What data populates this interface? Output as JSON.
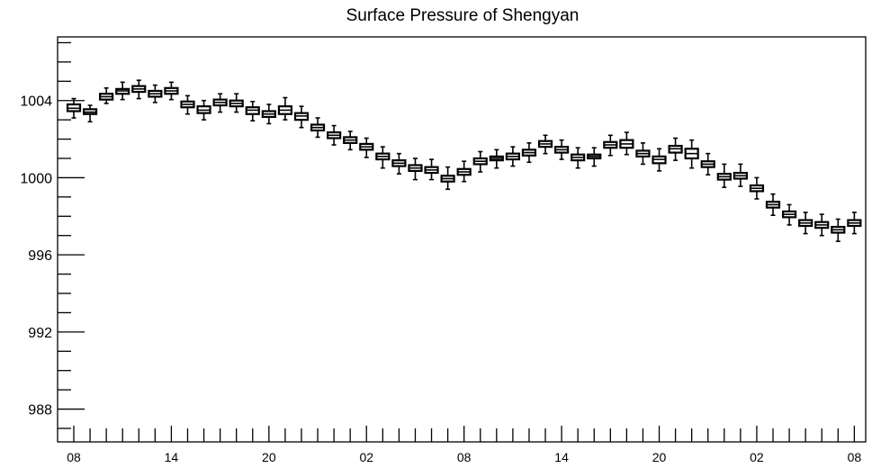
{
  "chart_data": {
    "type": "boxplot",
    "title": "Surface Pressure of Shengyan",
    "xlabel": "",
    "ylabel": "",
    "ylim": [
      986.3,
      1007.3
    ],
    "yticks": [
      988,
      992,
      996,
      1000,
      1004
    ],
    "yticklabels": [
      "988",
      "992",
      "996",
      "1000",
      "1004"
    ],
    "xtick_labels": [
      "08",
      "14",
      "20",
      "02",
      "08",
      "14",
      "20",
      "02",
      "08"
    ],
    "xtick_positions": [
      0,
      6,
      12,
      18,
      24,
      30,
      36,
      42,
      48
    ],
    "x_step": 1,
    "grid": false,
    "boxes": [
      {
        "x": 0,
        "median": 1003.6,
        "q1": 1003.45,
        "q3": 1003.8,
        "whislo": 1003.1,
        "whishi": 1004.1
      },
      {
        "x": 1,
        "median": 1003.4,
        "q1": 1003.3,
        "q3": 1003.55,
        "whislo": 1002.9,
        "whishi": 1003.75
      },
      {
        "x": 2,
        "median": 1004.2,
        "q1": 1004.05,
        "q3": 1004.35,
        "whislo": 1003.85,
        "whishi": 1004.65
      },
      {
        "x": 3,
        "median": 1004.5,
        "q1": 1004.35,
        "q3": 1004.6,
        "whislo": 1004.05,
        "whishi": 1004.95
      },
      {
        "x": 4,
        "median": 1004.6,
        "q1": 1004.45,
        "q3": 1004.75,
        "whislo": 1004.1,
        "whishi": 1005.05
      },
      {
        "x": 5,
        "median": 1004.35,
        "q1": 1004.2,
        "q3": 1004.5,
        "whislo": 1003.9,
        "whishi": 1004.8
      },
      {
        "x": 6,
        "median": 1004.5,
        "q1": 1004.35,
        "q3": 1004.65,
        "whislo": 1004.05,
        "whishi": 1004.95
      },
      {
        "x": 7,
        "median": 1003.8,
        "q1": 1003.65,
        "q3": 1003.95,
        "whislo": 1003.3,
        "whishi": 1004.25
      },
      {
        "x": 8,
        "median": 1003.5,
        "q1": 1003.35,
        "q3": 1003.7,
        "whislo": 1003.0,
        "whishi": 1004.0
      },
      {
        "x": 9,
        "median": 1003.9,
        "q1": 1003.75,
        "q3": 1004.05,
        "whislo": 1003.4,
        "whishi": 1004.35
      },
      {
        "x": 10,
        "median": 1003.85,
        "q1": 1003.7,
        "q3": 1004.0,
        "whislo": 1003.4,
        "whishi": 1004.35
      },
      {
        "x": 11,
        "median": 1003.5,
        "q1": 1003.3,
        "q3": 1003.65,
        "whislo": 1002.95,
        "whishi": 1003.95
      },
      {
        "x": 12,
        "median": 1003.3,
        "q1": 1003.15,
        "q3": 1003.45,
        "whislo": 1002.8,
        "whishi": 1003.8
      },
      {
        "x": 13,
        "median": 1003.5,
        "q1": 1003.3,
        "q3": 1003.7,
        "whislo": 1003.0,
        "whishi": 1004.15
      },
      {
        "x": 14,
        "median": 1003.2,
        "q1": 1003.0,
        "q3": 1003.35,
        "whislo": 1002.6,
        "whishi": 1003.7
      },
      {
        "x": 15,
        "median": 1002.6,
        "q1": 1002.45,
        "q3": 1002.75,
        "whislo": 1002.1,
        "whishi": 1003.1
      },
      {
        "x": 16,
        "median": 1002.2,
        "q1": 1002.05,
        "q3": 1002.35,
        "whislo": 1001.7,
        "whishi": 1002.7
      },
      {
        "x": 17,
        "median": 1001.95,
        "q1": 1001.8,
        "q3": 1002.1,
        "whislo": 1001.45,
        "whishi": 1002.4
      },
      {
        "x": 18,
        "median": 1001.6,
        "q1": 1001.45,
        "q3": 1001.75,
        "whislo": 1001.05,
        "whishi": 1002.05
      },
      {
        "x": 19,
        "median": 1001.1,
        "q1": 1000.95,
        "q3": 1001.25,
        "whislo": 1000.5,
        "whishi": 1001.6
      },
      {
        "x": 20,
        "median": 1000.75,
        "q1": 1000.6,
        "q3": 1000.9,
        "whislo": 1000.2,
        "whishi": 1001.25
      },
      {
        "x": 21,
        "median": 1000.5,
        "q1": 1000.35,
        "q3": 1000.65,
        "whislo": 999.9,
        "whishi": 1001.0
      },
      {
        "x": 22,
        "median": 1000.4,
        "q1": 1000.25,
        "q3": 1000.55,
        "whislo": 999.9,
        "whishi": 1000.95
      },
      {
        "x": 23,
        "median": 999.95,
        "q1": 999.8,
        "q3": 1000.1,
        "whislo": 999.4,
        "whishi": 1000.55
      },
      {
        "x": 24,
        "median": 1000.3,
        "q1": 1000.15,
        "q3": 1000.45,
        "whislo": 999.8,
        "whishi": 1000.85
      },
      {
        "x": 25,
        "median": 1000.85,
        "q1": 1000.7,
        "q3": 1001.0,
        "whislo": 1000.3,
        "whishi": 1001.35
      },
      {
        "x": 26,
        "median": 1001.0,
        "q1": 1000.9,
        "q3": 1001.1,
        "whislo": 1000.5,
        "whishi": 1001.45
      },
      {
        "x": 27,
        "median": 1001.1,
        "q1": 1000.95,
        "q3": 1001.25,
        "whislo": 1000.6,
        "whishi": 1001.6
      },
      {
        "x": 28,
        "median": 1001.3,
        "q1": 1001.15,
        "q3": 1001.45,
        "whislo": 1000.8,
        "whishi": 1001.8
      },
      {
        "x": 29,
        "median": 1001.75,
        "q1": 1001.6,
        "q3": 1001.9,
        "whislo": 1001.25,
        "whishi": 1002.2
      },
      {
        "x": 30,
        "median": 1001.45,
        "q1": 1001.3,
        "q3": 1001.6,
        "whislo": 1000.95,
        "whishi": 1001.95
      },
      {
        "x": 31,
        "median": 1001.05,
        "q1": 1000.9,
        "q3": 1001.2,
        "whislo": 1000.5,
        "whishi": 1001.55
      },
      {
        "x": 32,
        "median": 1001.1,
        "q1": 1001.0,
        "q3": 1001.2,
        "whislo": 1000.6,
        "whishi": 1001.55
      },
      {
        "x": 33,
        "median": 1001.7,
        "q1": 1001.55,
        "q3": 1001.85,
        "whislo": 1001.15,
        "whishi": 1002.2
      },
      {
        "x": 34,
        "median": 1001.75,
        "q1": 1001.55,
        "q3": 1001.95,
        "whislo": 1001.2,
        "whishi": 1002.35
      },
      {
        "x": 35,
        "median": 1001.25,
        "q1": 1001.1,
        "q3": 1001.4,
        "whislo": 1000.7,
        "whishi": 1001.8
      },
      {
        "x": 36,
        "median": 1000.95,
        "q1": 1000.75,
        "q3": 1001.1,
        "whislo": 1000.35,
        "whishi": 1001.5
      },
      {
        "x": 37,
        "median": 1001.5,
        "q1": 1001.3,
        "q3": 1001.65,
        "whislo": 1000.9,
        "whishi": 1002.05
      },
      {
        "x": 38,
        "median": 1001.25,
        "q1": 1001.0,
        "q3": 1001.5,
        "whislo": 1000.5,
        "whishi": 1001.95
      },
      {
        "x": 39,
        "median": 1000.7,
        "q1": 1000.55,
        "q3": 1000.85,
        "whislo": 1000.15,
        "whishi": 1001.25
      },
      {
        "x": 40,
        "median": 1000.05,
        "q1": 999.9,
        "q3": 1000.2,
        "whislo": 999.5,
        "whishi": 1000.7
      },
      {
        "x": 41,
        "median": 1000.1,
        "q1": 999.95,
        "q3": 1000.25,
        "whislo": 999.55,
        "whishi": 1000.7
      },
      {
        "x": 42,
        "median": 999.45,
        "q1": 999.3,
        "q3": 999.6,
        "whislo": 998.9,
        "whishi": 1000.0
      },
      {
        "x": 43,
        "median": 998.6,
        "q1": 998.45,
        "q3": 998.75,
        "whislo": 998.05,
        "whishi": 999.15
      },
      {
        "x": 44,
        "median": 998.1,
        "q1": 997.95,
        "q3": 998.25,
        "whislo": 997.55,
        "whishi": 998.6
      },
      {
        "x": 45,
        "median": 997.65,
        "q1": 997.5,
        "q3": 997.8,
        "whislo": 997.1,
        "whishi": 998.2
      },
      {
        "x": 46,
        "median": 997.55,
        "q1": 997.4,
        "q3": 997.7,
        "whislo": 997.0,
        "whishi": 998.1
      },
      {
        "x": 47,
        "median": 997.3,
        "q1": 997.15,
        "q3": 997.45,
        "whislo": 996.7,
        "whishi": 997.85
      },
      {
        "x": 48,
        "median": 997.65,
        "q1": 997.5,
        "q3": 997.8,
        "whislo": 997.1,
        "whishi": 998.2
      }
    ]
  }
}
